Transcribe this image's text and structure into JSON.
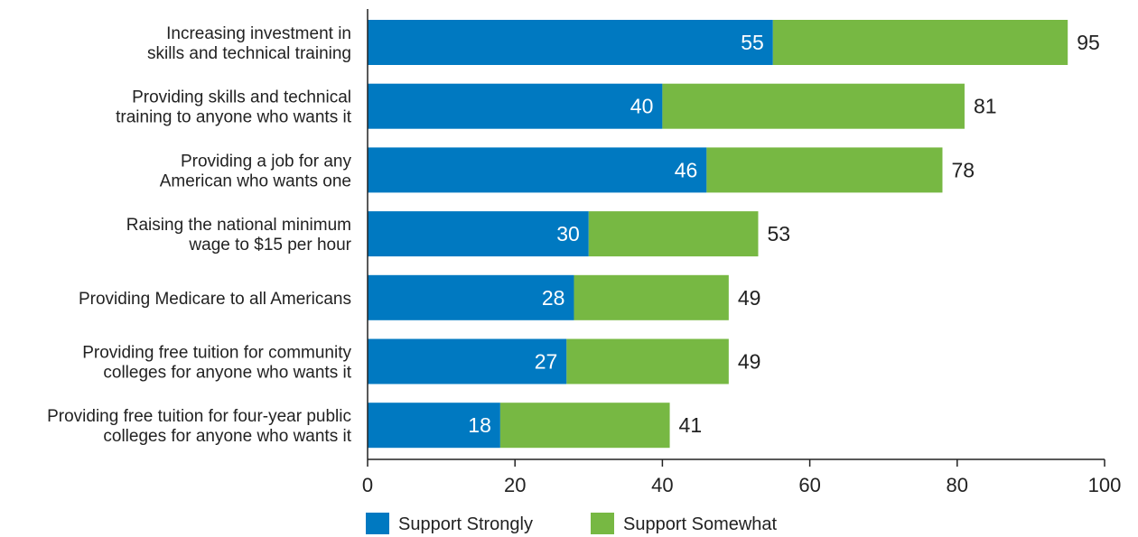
{
  "chart_data": {
    "type": "bar",
    "orientation": "horizontal",
    "stacked": true,
    "categories": [
      [
        "Increasing investment in",
        "skills and technical training"
      ],
      [
        "Providing skills and technical",
        "training to anyone who wants it"
      ],
      [
        "Providing a job for any",
        "American who wants one"
      ],
      [
        "Raising the national minimum",
        "wage to $15 per hour"
      ],
      [
        "Providing Medicare to all Americans"
      ],
      [
        "Providing free tuition for community",
        "colleges for anyone who wants it"
      ],
      [
        "Providing free tuition for four-year public",
        "colleges for anyone who wants it"
      ]
    ],
    "series": [
      {
        "name": "Support Strongly",
        "color": "#0079c1",
        "values": [
          55,
          40,
          46,
          30,
          28,
          27,
          18
        ]
      },
      {
        "name": "Support Somewhat",
        "color": "#77b843",
        "values": [
          40,
          41,
          32,
          23,
          21,
          22,
          23
        ]
      }
    ],
    "totals": [
      95,
      81,
      78,
      53,
      49,
      49,
      41
    ],
    "xlim": [
      0,
      100
    ],
    "xticks": [
      0,
      20,
      40,
      60,
      80,
      100
    ],
    "grid": false,
    "legend_position": "bottom-left"
  }
}
